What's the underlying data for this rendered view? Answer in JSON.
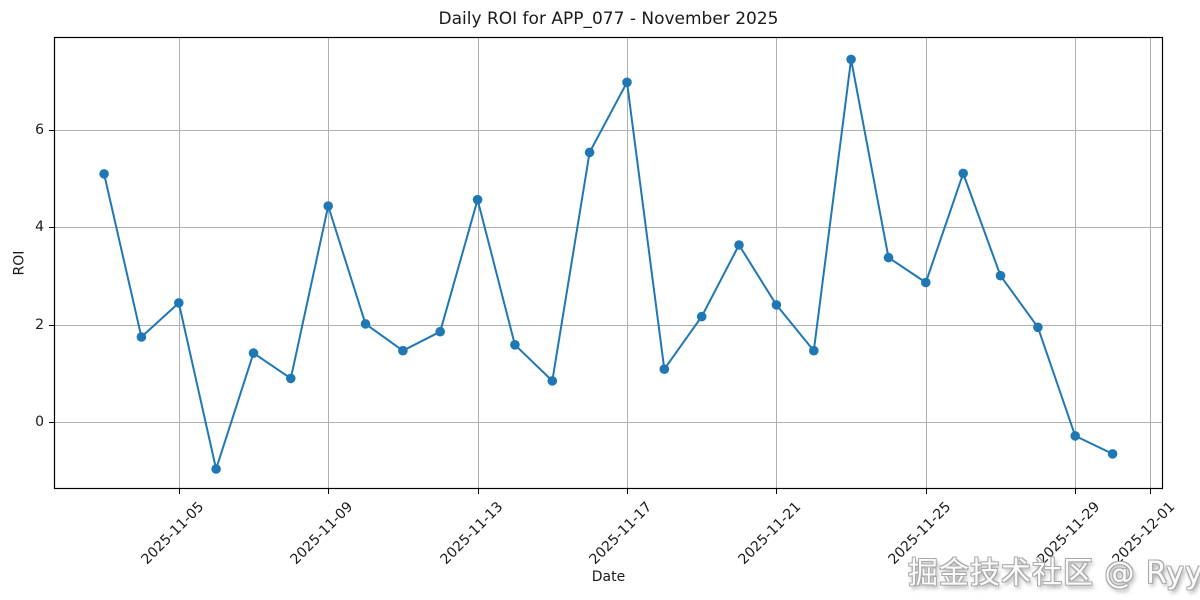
{
  "figure": {
    "title": "Daily ROI for APP_077 - November 2025",
    "xlabel": "Date",
    "ylabel": "ROI",
    "watermark": "掘金技术社区 @ Ryypol"
  },
  "chart_data": {
    "type": "line",
    "title": "Daily ROI for APP_077 - November 2025",
    "xlabel": "Date",
    "ylabel": "ROI",
    "legend": false,
    "grid": true,
    "line_color": "#1f77b4",
    "marker": "circle",
    "grid_color": "#b0b0b0",
    "spine_color": "#000000",
    "x": [
      "2025-11-03",
      "2025-11-04",
      "2025-11-05",
      "2025-11-06",
      "2025-11-07",
      "2025-11-08",
      "2025-11-09",
      "2025-11-10",
      "2025-11-11",
      "2025-11-12",
      "2025-11-13",
      "2025-11-14",
      "2025-11-15",
      "2025-11-16",
      "2025-11-17",
      "2025-11-18",
      "2025-11-19",
      "2025-11-20",
      "2025-11-21",
      "2025-11-22",
      "2025-11-23",
      "2025-11-24",
      "2025-11-25",
      "2025-11-26",
      "2025-11-27",
      "2025-11-28",
      "2025-11-29",
      "2025-11-30"
    ],
    "values": [
      5.1,
      1.75,
      2.45,
      -0.96,
      1.42,
      0.9,
      4.44,
      2.02,
      1.47,
      1.86,
      4.57,
      1.59,
      0.85,
      5.54,
      6.98,
      1.09,
      2.17,
      3.64,
      2.41,
      1.47,
      7.45,
      3.38,
      2.87,
      5.11,
      3.01,
      1.95,
      -0.28,
      -0.65
    ],
    "x_tick_labels": [
      "2025-11-05",
      "2025-11-09",
      "2025-11-13",
      "2025-11-17",
      "2025-11-21",
      "2025-11-25",
      "2025-11-29",
      "2025-12-01"
    ],
    "y_ticks": [
      0,
      2,
      4,
      6
    ],
    "ylim": [
      -1.37,
      7.91
    ],
    "xlim_days": [
      1.66,
      31.35
    ]
  }
}
